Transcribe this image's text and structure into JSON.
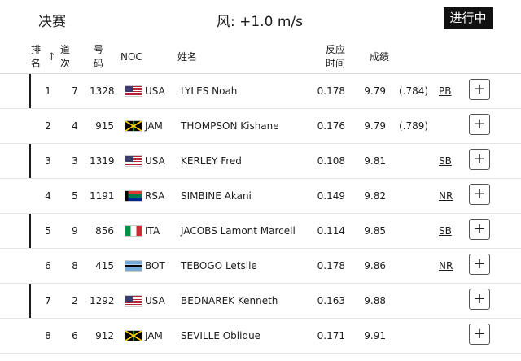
{
  "header": {
    "title": "决赛",
    "wind": "风: +1.0 m/s",
    "status": "进行中"
  },
  "columns": {
    "rank": [
      "排",
      "名"
    ],
    "lane": [
      "道",
      "次"
    ],
    "bib": [
      "号",
      "码"
    ],
    "noc": "NOC",
    "name": "姓名",
    "reaction": [
      "反应",
      "时间"
    ],
    "result": "成绩",
    "sort_icon": "up-arrow"
  },
  "rows": [
    {
      "rank": "1",
      "lane": "7",
      "bib": "1328",
      "flag": "usa",
      "noc": "USA",
      "name": "LYLES Noah",
      "reaction": "0.178",
      "result": "9.79",
      "tiebreak": "(.784)",
      "record": "PB"
    },
    {
      "rank": "2",
      "lane": "4",
      "bib": "915",
      "flag": "jam",
      "noc": "JAM",
      "name": "THOMPSON Kishane",
      "reaction": "0.176",
      "result": "9.79",
      "tiebreak": "(.789)",
      "record": ""
    },
    {
      "rank": "3",
      "lane": "3",
      "bib": "1319",
      "flag": "usa",
      "noc": "USA",
      "name": "KERLEY Fred",
      "reaction": "0.108",
      "result": "9.81",
      "tiebreak": "",
      "record": "SB"
    },
    {
      "rank": "4",
      "lane": "5",
      "bib": "1191",
      "flag": "rsa",
      "noc": "RSA",
      "name": "SIMBINE Akani",
      "reaction": "0.149",
      "result": "9.82",
      "tiebreak": "",
      "record": "NR"
    },
    {
      "rank": "5",
      "lane": "9",
      "bib": "856",
      "flag": "ita",
      "noc": "ITA",
      "name": "JACOBS Lamont Marcell",
      "reaction": "0.114",
      "result": "9.85",
      "tiebreak": "",
      "record": "SB"
    },
    {
      "rank": "6",
      "lane": "8",
      "bib": "415",
      "flag": "bot",
      "noc": "BOT",
      "name": "TEBOGO Letsile",
      "reaction": "0.178",
      "result": "9.86",
      "tiebreak": "",
      "record": "NR"
    },
    {
      "rank": "7",
      "lane": "2",
      "bib": "1292",
      "flag": "usa",
      "noc": "USA",
      "name": "BEDNAREK Kenneth",
      "reaction": "0.163",
      "result": "9.88",
      "tiebreak": "",
      "record": ""
    },
    {
      "rank": "8",
      "lane": "6",
      "bib": "912",
      "flag": "jam",
      "noc": "JAM",
      "name": "SEVILLE Oblique",
      "reaction": "0.171",
      "result": "9.91",
      "tiebreak": "",
      "record": ""
    }
  ],
  "expand_label": "+",
  "colors": {
    "accent": "#1c1c1c",
    "status_bg": "#111111"
  }
}
